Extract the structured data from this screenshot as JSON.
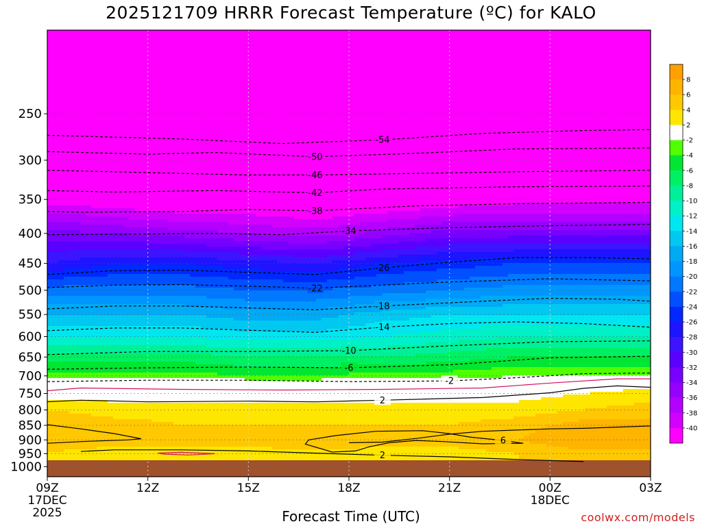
{
  "chart_data": {
    "type": "heatmap",
    "title": "2025121709 HRRR Forecast Temperature (ºC) for KALO",
    "xlabel": "Forecast Time (UTC)",
    "credit": "coolwx.com/models",
    "x_ticks": [
      {
        "label": "09Z",
        "hour": 9,
        "line2": "17DEC",
        "line3": "2025"
      },
      {
        "label": "12Z",
        "hour": 12
      },
      {
        "label": "15Z",
        "hour": 15
      },
      {
        "label": "18Z",
        "hour": 18
      },
      {
        "label": "21Z",
        "hour": 21
      },
      {
        "label": "00Z",
        "hour": 24,
        "line2": "18DEC"
      },
      {
        "label": "03Z",
        "hour": 27
      }
    ],
    "x_range_hours": [
      9,
      27
    ],
    "y_axis": {
      "scale": "log",
      "inverted": true,
      "range": [
        180,
        1040
      ],
      "ground_level": 975
    },
    "y_ticks": [
      250,
      300,
      350,
      400,
      450,
      500,
      550,
      600,
      650,
      700,
      750,
      800,
      850,
      900,
      950,
      1000
    ],
    "colorbar": {
      "levels": [
        8,
        6,
        4,
        2,
        -2,
        -4,
        -6,
        -8,
        -10,
        -12,
        -14,
        -16,
        -18,
        -20,
        -22,
        -24,
        -26,
        -28,
        -30,
        -32,
        -34,
        -36,
        -38,
        -40
      ],
      "bands": [
        {
          "min": 8,
          "max": 10,
          "color": "#ffa000"
        },
        {
          "min": 6,
          "max": 8,
          "color": "#ffb400"
        },
        {
          "min": 4,
          "max": 6,
          "color": "#ffc800"
        },
        {
          "min": 2,
          "max": 4,
          "color": "#ffe600"
        },
        {
          "min": -2,
          "max": 2,
          "color": "#ffffff"
        },
        {
          "min": -4,
          "max": -2,
          "color": "#50ff00"
        },
        {
          "min": -6,
          "max": -4,
          "color": "#00e632"
        },
        {
          "min": -8,
          "max": -6,
          "color": "#00f064"
        },
        {
          "min": -10,
          "max": -8,
          "color": "#00f09a"
        },
        {
          "min": -12,
          "max": -10,
          "color": "#00f0c8"
        },
        {
          "min": -14,
          "max": -12,
          "color": "#00e6f0"
        },
        {
          "min": -16,
          "max": -14,
          "color": "#00c8f0"
        },
        {
          "min": -18,
          "max": -16,
          "color": "#00aaf5"
        },
        {
          "min": -20,
          "max": -18,
          "color": "#0096ff"
        },
        {
          "min": -22,
          "max": -20,
          "color": "#0078ff"
        },
        {
          "min": -24,
          "max": -22,
          "color": "#0050ff"
        },
        {
          "min": -26,
          "max": -24,
          "color": "#0028ff"
        },
        {
          "min": -28,
          "max": -26,
          "color": "#1e14ff"
        },
        {
          "min": -30,
          "max": -28,
          "color": "#3c14ff"
        },
        {
          "min": -32,
          "max": -30,
          "color": "#5a00ff"
        },
        {
          "min": -34,
          "max": -32,
          "color": "#7800ff"
        },
        {
          "min": -36,
          "max": -34,
          "color": "#9600ff"
        },
        {
          "min": -38,
          "max": -36,
          "color": "#b400ff"
        },
        {
          "min": -40,
          "max": -38,
          "color": "#d200ff"
        },
        {
          "min": -60,
          "max": -40,
          "color": "#ff00ff"
        }
      ]
    },
    "profile_hours": [
      9,
      11,
      13,
      15,
      17,
      19,
      21,
      23,
      25,
      27
    ],
    "profile_levels": [
      180,
      250,
      300,
      350,
      400,
      450,
      500,
      550,
      600,
      650,
      700,
      720,
      750,
      800,
      850,
      900,
      950,
      1040
    ],
    "profiles": [
      [
        -62,
        -52,
        -49,
        -41,
        -33,
        -28,
        -21,
        -16,
        -12,
        -7,
        -3,
        0,
        1,
        4,
        6,
        5,
        4,
        4
      ],
      [
        -62,
        -52,
        -50,
        -42,
        -34,
        -26,
        -21,
        -16,
        -12,
        -7,
        -3,
        0,
        1,
        3,
        5,
        5,
        3,
        3
      ],
      [
        -62,
        -53,
        -50,
        -43,
        -35,
        -26,
        -21,
        -16,
        -12,
        -7,
        -3,
        0,
        1,
        3,
        4,
        5,
        3,
        3
      ],
      [
        -62,
        -53,
        -50,
        -43,
        -36,
        -27,
        -22,
        -17,
        -13,
        -8,
        -4,
        0,
        1,
        3,
        4,
        5,
        3,
        3
      ],
      [
        -62,
        -54,
        -51,
        -44,
        -37,
        -28,
        -22,
        -17,
        -13,
        -8,
        -4,
        0,
        1,
        3,
        4,
        6,
        3,
        3
      ],
      [
        -62,
        -54,
        -50,
        -43,
        -35,
        -26,
        -21,
        -15,
        -12,
        -8,
        -3,
        0,
        1,
        3,
        4,
        5,
        3,
        3
      ],
      [
        -62,
        -53,
        -50,
        -42,
        -33,
        -25,
        -20,
        -14,
        -11,
        -7,
        -3,
        0,
        1,
        3,
        4,
        5,
        3,
        3
      ],
      [
        -62,
        -53,
        -50,
        -41,
        -33,
        -24,
        -19,
        -14,
        -10,
        -6,
        -2,
        0,
        1,
        3,
        5,
        6,
        4,
        4
      ],
      [
        -62,
        -53,
        -50,
        -41,
        -33,
        -24,
        -19,
        -14,
        -10,
        -6,
        -2,
        0,
        2,
        4,
        7,
        8,
        5,
        5
      ],
      [
        -62,
        -53,
        -50,
        -41,
        -33,
        -24,
        -19,
        -14,
        -10,
        -6,
        -2,
        1,
        3,
        5,
        7,
        8,
        5,
        5
      ]
    ],
    "contour_lines": [
      {
        "label": "-54",
        "color": "#000000",
        "dashed": true,
        "points": [
          [
            9,
            272
          ],
          [
            13,
            276
          ],
          [
            16,
            281
          ],
          [
            19,
            277
          ],
          [
            22,
            270
          ],
          [
            25,
            267
          ],
          [
            27,
            266
          ]
        ]
      },
      {
        "label": "-50",
        "color": "#000000",
        "dashed": true,
        "points": [
          [
            9,
            290
          ],
          [
            12,
            293
          ],
          [
            14,
            291
          ],
          [
            17,
            296
          ],
          [
            20,
            292
          ],
          [
            23,
            287
          ],
          [
            27,
            286
          ]
        ]
      },
      {
        "label": "-46",
        "color": "#000000",
        "dashed": true,
        "points": [
          [
            9,
            312
          ],
          [
            12,
            315
          ],
          [
            15,
            318
          ],
          [
            17,
            318
          ],
          [
            20,
            316
          ],
          [
            23,
            314
          ],
          [
            27,
            312
          ]
        ]
      },
      {
        "label": "-42",
        "color": "#000000",
        "dashed": true,
        "points": [
          [
            9,
            338
          ],
          [
            11,
            340
          ],
          [
            14,
            338
          ],
          [
            17,
            341
          ],
          [
            19,
            336
          ],
          [
            23,
            333
          ],
          [
            27,
            332
          ]
        ]
      },
      {
        "label": "-38",
        "color": "#000000",
        "dashed": true,
        "points": [
          [
            9,
            367
          ],
          [
            10,
            368
          ],
          [
            13,
            367
          ],
          [
            15,
            364
          ],
          [
            17,
            366
          ],
          [
            20,
            359
          ],
          [
            23,
            356
          ],
          [
            27,
            354
          ]
        ]
      },
      {
        "label": "-34",
        "color": "#000000",
        "dashed": true,
        "points": [
          [
            9,
            402
          ],
          [
            12,
            401
          ],
          [
            14,
            400
          ],
          [
            16,
            402
          ],
          [
            18,
            396
          ],
          [
            21,
            391
          ],
          [
            24,
            388
          ],
          [
            27,
            386
          ]
        ]
      },
      {
        "label": "-26",
        "color": "#000000",
        "dashed": true,
        "points": [
          [
            9,
            470
          ],
          [
            11,
            463
          ],
          [
            13,
            462
          ],
          [
            15,
            466
          ],
          [
            17,
            470
          ],
          [
            19,
            458
          ],
          [
            21,
            448
          ],
          [
            23,
            440
          ],
          [
            25,
            440
          ],
          [
            27,
            442
          ]
        ]
      },
      {
        "label": "-22",
        "color": "#000000",
        "dashed": true,
        "points": [
          [
            9,
            495
          ],
          [
            11,
            490
          ],
          [
            13,
            489
          ],
          [
            15,
            492
          ],
          [
            17,
            496
          ],
          [
            19,
            490
          ],
          [
            21,
            484
          ],
          [
            24,
            478
          ],
          [
            27,
            482
          ]
        ]
      },
      {
        "label": "-18",
        "color": "#000000",
        "dashed": true,
        "points": [
          [
            9,
            538
          ],
          [
            11,
            532
          ],
          [
            13,
            532
          ],
          [
            15,
            536
          ],
          [
            17,
            540
          ],
          [
            19,
            532
          ],
          [
            22,
            522
          ],
          [
            24,
            516
          ],
          [
            26,
            518
          ],
          [
            27,
            522
          ]
        ]
      },
      {
        "label": "-14",
        "color": "#000000",
        "dashed": true,
        "points": [
          [
            9,
            586
          ],
          [
            11,
            580
          ],
          [
            13,
            580
          ],
          [
            15,
            585
          ],
          [
            17,
            590
          ],
          [
            19,
            578
          ],
          [
            21,
            570
          ],
          [
            23,
            566
          ],
          [
            25,
            570
          ],
          [
            27,
            578
          ]
        ]
      },
      {
        "label": "-10",
        "color": "#000000",
        "dashed": true,
        "points": [
          [
            9,
            644
          ],
          [
            12,
            636
          ],
          [
            15,
            636
          ],
          [
            18,
            634
          ],
          [
            21,
            622
          ],
          [
            24,
            612
          ],
          [
            27,
            610
          ]
        ]
      },
      {
        "label": "-6",
        "color": "#000000",
        "dashed": true,
        "points": [
          [
            9,
            682
          ],
          [
            12,
            678
          ],
          [
            15,
            676
          ],
          [
            18,
            678
          ],
          [
            21,
            670
          ],
          [
            24,
            652
          ],
          [
            27,
            648
          ]
        ]
      },
      {
        "label": "-2",
        "color": "#000000",
        "dashed": true,
        "points": [
          [
            9,
            716
          ],
          [
            12,
            712
          ],
          [
            15,
            712
          ],
          [
            18,
            716
          ],
          [
            21,
            714
          ],
          [
            23,
            705
          ],
          [
            25,
            694
          ],
          [
            27,
            692
          ]
        ]
      },
      {
        "label": "",
        "color": "#d01060",
        "dashed": false,
        "points": [
          [
            9,
            742
          ],
          [
            10,
            734
          ],
          [
            13,
            738
          ],
          [
            16,
            740
          ],
          [
            19,
            738
          ],
          [
            22,
            734
          ],
          [
            24,
            720
          ],
          [
            26,
            708
          ],
          [
            27,
            708
          ]
        ]
      },
      {
        "label": "2",
        "color": "#000000",
        "dashed": false,
        "points": [
          [
            9,
            775
          ],
          [
            10,
            770
          ],
          [
            12,
            775
          ],
          [
            15,
            773
          ],
          [
            17,
            775
          ],
          [
            19,
            770
          ],
          [
            22,
            762
          ],
          [
            24,
            748
          ],
          [
            25,
            735
          ],
          [
            26,
            728
          ],
          [
            27,
            732
          ]
        ]
      },
      {
        "label": "",
        "color": "#000000",
        "dashed": false,
        "points": [
          [
            18,
            910
          ],
          [
            19,
            908
          ],
          [
            20,
            895
          ],
          [
            21,
            880
          ],
          [
            22,
            870
          ],
          [
            23,
            866
          ],
          [
            24,
            862
          ],
          [
            25,
            860
          ],
          [
            26,
            856
          ],
          [
            27,
            852
          ]
        ]
      },
      {
        "label": "",
        "color": "#000000",
        "dashed": false,
        "points": [
          [
            9,
            848
          ],
          [
            10,
            862
          ],
          [
            11,
            878
          ],
          [
            11.8,
            896
          ],
          [
            11.4,
            900
          ],
          [
            10.2,
            905
          ],
          [
            9,
            912
          ]
        ]
      },
      {
        "label": "6",
        "color": "#000000",
        "dashed": false,
        "points": [
          [
            17.5,
            944
          ],
          [
            16.7,
            915
          ],
          [
            16.8,
            900
          ],
          [
            17.6,
            885
          ],
          [
            18.8,
            870
          ],
          [
            20.2,
            868
          ],
          [
            21,
            878
          ],
          [
            21.6,
            890
          ],
          [
            22.6,
            902
          ],
          [
            23.2,
            912
          ],
          [
            22,
            914
          ],
          [
            20.8,
            906
          ],
          [
            20,
            902
          ],
          [
            19.2,
            910
          ],
          [
            18.6,
            925
          ],
          [
            18.2,
            940
          ],
          [
            17.5,
            944
          ]
        ]
      },
      {
        "label": "2",
        "color": "#000000",
        "dashed": false,
        "points": [
          [
            10,
            942
          ],
          [
            11,
            936
          ],
          [
            13,
            936
          ],
          [
            15,
            940
          ],
          [
            17,
            948
          ],
          [
            19,
            956
          ],
          [
            21,
            962
          ],
          [
            23,
            972
          ],
          [
            24,
            976
          ],
          [
            25,
            980
          ]
        ]
      },
      {
        "label": "",
        "color": "#d01060",
        "dashed": false,
        "points": [
          [
            12.3,
            948
          ],
          [
            13,
            945
          ],
          [
            14,
            950
          ],
          [
            13.2,
            955
          ],
          [
            12.5,
            952
          ],
          [
            12.3,
            948
          ]
        ]
      }
    ]
  }
}
